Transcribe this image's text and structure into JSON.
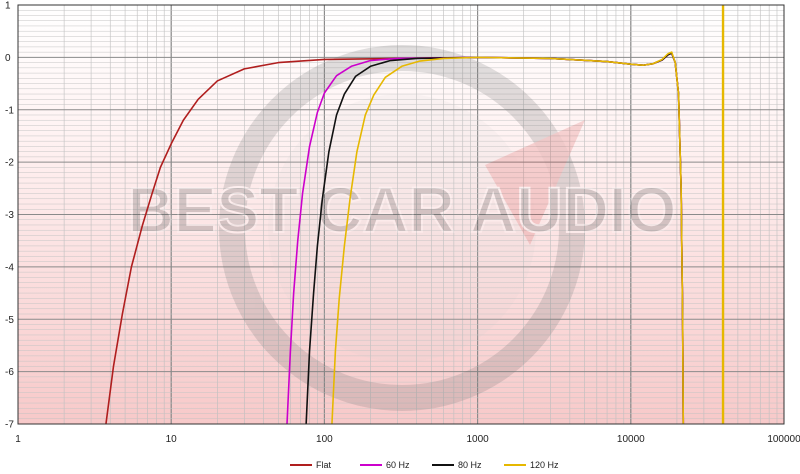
{
  "chart_data": {
    "type": "line",
    "title": "",
    "xlabel": "",
    "ylabel": "",
    "x_scale": "log",
    "xlim": [
      1,
      100000
    ],
    "ylim": [
      -7,
      1
    ],
    "grid": true,
    "legend_position": "bottom",
    "x_ticks": [
      "1",
      "10",
      "100",
      "1000",
      "10000",
      "100000"
    ],
    "y_ticks": [
      "1",
      "0",
      "-1",
      "-2",
      "-3",
      "-4",
      "-5",
      "-6",
      "-7"
    ],
    "watermark": "BEST CAR AUDIO",
    "vertical_marker": {
      "x": 40000,
      "color": "#e6b800"
    },
    "series": [
      {
        "name": "Flat",
        "color": "#b01e1e",
        "points": [
          [
            3.75,
            -7
          ],
          [
            4.2,
            -5.9
          ],
          [
            4.8,
            -4.9
          ],
          [
            5.5,
            -4.0
          ],
          [
            6.5,
            -3.2
          ],
          [
            7.5,
            -2.6
          ],
          [
            8.5,
            -2.1
          ],
          [
            10,
            -1.65
          ],
          [
            12,
            -1.2
          ],
          [
            15,
            -0.8
          ],
          [
            20,
            -0.45
          ],
          [
            30,
            -0.22
          ],
          [
            50,
            -0.1
          ],
          [
            100,
            -0.04
          ],
          [
            300,
            -0.02
          ],
          [
            1000,
            0
          ],
          [
            3000,
            -0.02
          ],
          [
            7000,
            -0.08
          ],
          [
            10000,
            -0.13
          ],
          [
            12000,
            -0.15
          ],
          [
            14000,
            -0.12
          ],
          [
            16000,
            -0.05
          ],
          [
            17500,
            0.05
          ],
          [
            18500,
            0.08
          ],
          [
            19500,
            -0.1
          ],
          [
            20500,
            -0.7
          ],
          [
            21300,
            -2.5
          ],
          [
            21800,
            -5.0
          ],
          [
            22000,
            -7
          ]
        ]
      },
      {
        "name": "60 Hz",
        "color": "#cc00cc",
        "points": [
          [
            57,
            -7
          ],
          [
            60,
            -5.6
          ],
          [
            63,
            -4.5
          ],
          [
            67,
            -3.5
          ],
          [
            72,
            -2.6
          ],
          [
            80,
            -1.7
          ],
          [
            90,
            -1.05
          ],
          [
            100,
            -0.68
          ],
          [
            120,
            -0.35
          ],
          [
            150,
            -0.17
          ],
          [
            200,
            -0.06
          ],
          [
            300,
            -0.02
          ],
          [
            1000,
            0
          ],
          [
            3000,
            -0.02
          ],
          [
            7000,
            -0.08
          ],
          [
            10000,
            -0.13
          ],
          [
            12000,
            -0.15
          ],
          [
            14000,
            -0.12
          ],
          [
            16000,
            -0.05
          ],
          [
            17500,
            0.05
          ],
          [
            18500,
            0.08
          ],
          [
            19500,
            -0.1
          ],
          [
            20500,
            -0.7
          ],
          [
            21300,
            -2.5
          ],
          [
            21800,
            -5.0
          ],
          [
            22000,
            -7
          ]
        ]
      },
      {
        "name": "80 Hz",
        "color": "#111111",
        "points": [
          [
            76,
            -7
          ],
          [
            80,
            -5.6
          ],
          [
            85,
            -4.5
          ],
          [
            90,
            -3.6
          ],
          [
            97,
            -2.7
          ],
          [
            107,
            -1.8
          ],
          [
            120,
            -1.1
          ],
          [
            135,
            -0.7
          ],
          [
            160,
            -0.36
          ],
          [
            200,
            -0.17
          ],
          [
            270,
            -0.06
          ],
          [
            400,
            -0.02
          ],
          [
            1000,
            0
          ],
          [
            3000,
            -0.02
          ],
          [
            7000,
            -0.08
          ],
          [
            10000,
            -0.13
          ],
          [
            12000,
            -0.15
          ],
          [
            14000,
            -0.12
          ],
          [
            16000,
            -0.05
          ],
          [
            17500,
            0.05
          ],
          [
            18500,
            0.08
          ],
          [
            19500,
            -0.1
          ],
          [
            20500,
            -0.7
          ],
          [
            21300,
            -2.5
          ],
          [
            21800,
            -5.0
          ],
          [
            22000,
            -7
          ]
        ]
      },
      {
        "name": "120 Hz",
        "color": "#e6b800",
        "points": [
          [
            112,
            -7
          ],
          [
            118,
            -5.6
          ],
          [
            125,
            -4.6
          ],
          [
            135,
            -3.6
          ],
          [
            147,
            -2.7
          ],
          [
            163,
            -1.8
          ],
          [
            185,
            -1.1
          ],
          [
            210,
            -0.72
          ],
          [
            250,
            -0.38
          ],
          [
            320,
            -0.17
          ],
          [
            420,
            -0.07
          ],
          [
            600,
            -0.02
          ],
          [
            1000,
            0
          ],
          [
            3000,
            -0.02
          ],
          [
            7000,
            -0.08
          ],
          [
            10000,
            -0.13
          ],
          [
            12000,
            -0.15
          ],
          [
            14000,
            -0.12
          ],
          [
            16000,
            -0.04
          ],
          [
            17500,
            0.07
          ],
          [
            18500,
            0.1
          ],
          [
            19500,
            -0.1
          ],
          [
            20500,
            -0.7
          ],
          [
            21300,
            -2.5
          ],
          [
            21800,
            -5.0
          ],
          [
            22000,
            -7
          ]
        ]
      }
    ]
  }
}
